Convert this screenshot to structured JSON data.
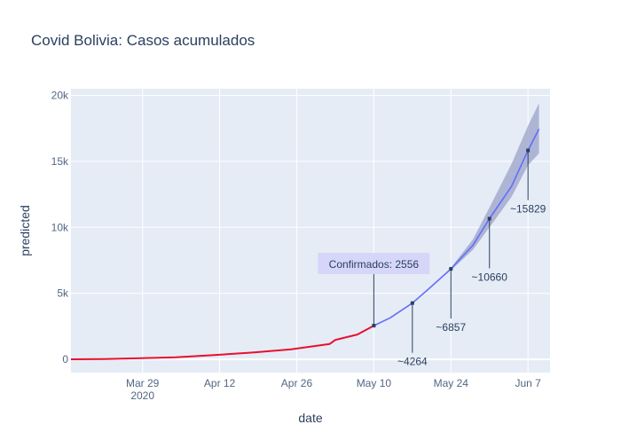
{
  "chart_data": {
    "type": "line",
    "title": "Covid Bolivia: Casos acumulados",
    "xlabel": "date",
    "ylabel": "predicted",
    "x_range": [
      "2020-03-16",
      "2020-06-11"
    ],
    "ylim": [
      -1000,
      20500
    ],
    "grid": true,
    "legend": "none",
    "x_ticks": [
      {
        "date": "2020-03-29",
        "label": "Mar 29",
        "sublabel": "2020"
      },
      {
        "date": "2020-04-12",
        "label": "Apr 12",
        "sublabel": ""
      },
      {
        "date": "2020-04-26",
        "label": "Apr 26",
        "sublabel": ""
      },
      {
        "date": "2020-05-10",
        "label": "May 10",
        "sublabel": ""
      },
      {
        "date": "2020-05-24",
        "label": "May 24",
        "sublabel": ""
      },
      {
        "date": "2020-06-07",
        "label": "Jun 7",
        "sublabel": ""
      }
    ],
    "y_ticks": [
      {
        "value": 0,
        "label": "0"
      },
      {
        "value": 5000,
        "label": "5k"
      },
      {
        "value": 10000,
        "label": "10k"
      },
      {
        "value": 15000,
        "label": "15k"
      },
      {
        "value": 20000,
        "label": "20k"
      }
    ],
    "colors": {
      "plot_bg": "#e5ecf6",
      "grid": "#ffffff",
      "confirmed": "#e8102e",
      "predicted": "#636efa",
      "band": "#9ba1c8",
      "annotation_line": "#2a3f5f",
      "annotation_box": "#d6d6f8",
      "text": "#2a3f5f",
      "tick_text": "#506784"
    },
    "series": [
      {
        "role": "predicted",
        "points": [
          [
            "2020-05-10",
            2556
          ],
          [
            "2020-05-13",
            3150
          ],
          [
            "2020-05-17",
            4264
          ],
          [
            "2020-05-20",
            5350
          ],
          [
            "2020-05-24",
            6857
          ],
          [
            "2020-05-28",
            8650
          ],
          [
            "2020-05-31",
            10660
          ],
          [
            "2020-06-04",
            13100
          ],
          [
            "2020-06-07",
            15829
          ],
          [
            "2020-06-09",
            17450
          ]
        ]
      },
      {
        "role": "confirmed",
        "points": [
          [
            "2020-03-16",
            10
          ],
          [
            "2020-03-22",
            30
          ],
          [
            "2020-03-28",
            80
          ],
          [
            "2020-04-04",
            160
          ],
          [
            "2020-04-11",
            330
          ],
          [
            "2020-04-18",
            520
          ],
          [
            "2020-04-25",
            760
          ],
          [
            "2020-05-02",
            1170
          ],
          [
            "2020-05-03",
            1470
          ],
          [
            "2020-05-07",
            1880
          ],
          [
            "2020-05-10",
            2556
          ]
        ]
      }
    ],
    "band": {
      "upper": [
        [
          "2020-05-24",
          6950
        ],
        [
          "2020-05-28",
          9100
        ],
        [
          "2020-05-31",
          11500
        ],
        [
          "2020-06-04",
          14800
        ],
        [
          "2020-06-07",
          17700
        ],
        [
          "2020-06-09",
          19400
        ]
      ],
      "lower": [
        [
          "2020-05-24",
          6750
        ],
        [
          "2020-05-28",
          8300
        ],
        [
          "2020-05-31",
          10000
        ],
        [
          "2020-06-04",
          12300
        ],
        [
          "2020-06-07",
          14700
        ],
        [
          "2020-06-09",
          15600
        ]
      ]
    },
    "annotations": [
      {
        "date": "2020-05-10",
        "value": 2556,
        "text": "Confirmados: 2556",
        "boxed": true
      },
      {
        "date": "2020-05-17",
        "value": 4264,
        "text": "~4264",
        "boxed": false
      },
      {
        "date": "2020-05-24",
        "value": 6857,
        "text": "~6857",
        "boxed": false
      },
      {
        "date": "2020-05-31",
        "value": 10660,
        "text": "~10660",
        "boxed": false
      },
      {
        "date": "2020-06-07",
        "value": 15829,
        "text": "~15829",
        "boxed": false
      }
    ]
  }
}
